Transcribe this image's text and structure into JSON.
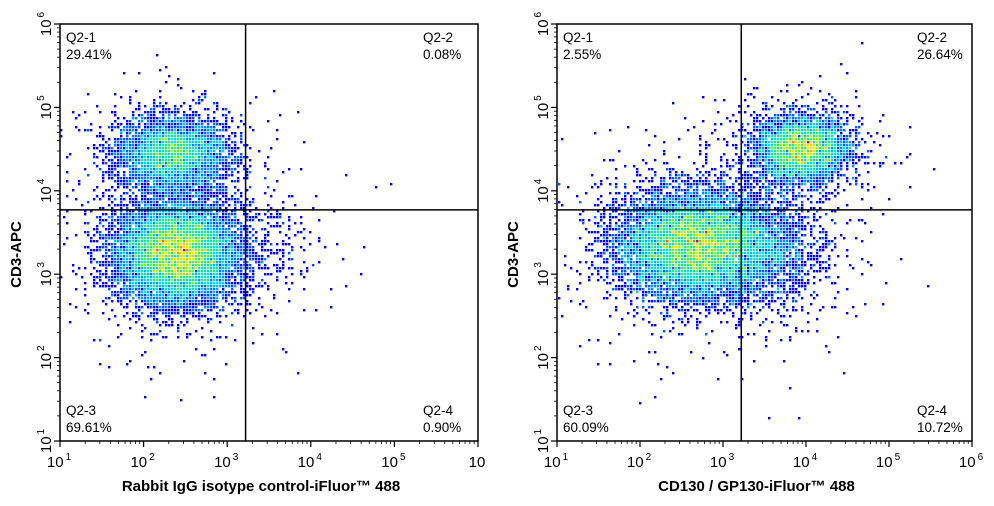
{
  "chart_data": [
    {
      "type": "scatter",
      "subtype": "flow-cytometry-density-plot",
      "xlabel": "Rabbit IgG isotype control-iFluor™ 488",
      "ylabel": "CD3-APC",
      "xscale": "log",
      "yscale": "log",
      "xlim": [
        10,
        1000000
      ],
      "ylim": [
        10,
        1000000
      ],
      "x_ticks": [
        {
          "base": "10",
          "exp": "1"
        },
        {
          "base": "10",
          "exp": "2"
        },
        {
          "base": "10",
          "exp": "3"
        },
        {
          "base": "10",
          "exp": "4"
        },
        {
          "base": "10",
          "exp": "5"
        },
        {
          "base": "10",
          "exp": ""
        }
      ],
      "y_ticks": [
        {
          "base": "10",
          "exp": "1"
        },
        {
          "base": "10",
          "exp": "2"
        },
        {
          "base": "10",
          "exp": "3"
        },
        {
          "base": "10",
          "exp": "4"
        },
        {
          "base": "10",
          "exp": "5"
        },
        {
          "base": "10",
          "exp": "6"
        }
      ],
      "gate": {
        "x": 1660,
        "y": 5900
      },
      "quadrants": [
        {
          "name": "Q2-1",
          "percent": "29.41%",
          "position": "top-left"
        },
        {
          "name": "Q2-2",
          "percent": "0.08%",
          "position": "top-right"
        },
        {
          "name": "Q2-3",
          "percent": "69.61%",
          "position": "bottom-left"
        },
        {
          "name": "Q2-4",
          "percent": "0.90%",
          "position": "bottom-right"
        }
      ],
      "populations": [
        {
          "log_x": 2.35,
          "log_y": 4.45,
          "sd_x": 0.33,
          "sd_y": 0.22,
          "fraction": 0.29
        },
        {
          "log_x": 2.4,
          "log_y": 3.25,
          "sd_x": 0.36,
          "sd_y": 0.3,
          "fraction": 0.7
        },
        {
          "log_x": 3.6,
          "log_y": 3.4,
          "sd_x": 0.3,
          "sd_y": 0.3,
          "fraction": 0.01
        }
      ]
    },
    {
      "type": "scatter",
      "subtype": "flow-cytometry-density-plot",
      "xlabel": "CD130 / GP130-iFluor™ 488",
      "ylabel": "CD3-APC",
      "xscale": "log",
      "yscale": "log",
      "xlim": [
        10,
        1000000
      ],
      "ylim": [
        10,
        1000000
      ],
      "x_ticks": [
        {
          "base": "10",
          "exp": "1"
        },
        {
          "base": "10",
          "exp": "2"
        },
        {
          "base": "10",
          "exp": "3"
        },
        {
          "base": "10",
          "exp": "4"
        },
        {
          "base": "10",
          "exp": "5"
        },
        {
          "base": "10",
          "exp": "6"
        }
      ],
      "y_ticks": [
        {
          "base": "10",
          "exp": "1"
        },
        {
          "base": "10",
          "exp": "2"
        },
        {
          "base": "10",
          "exp": "3"
        },
        {
          "base": "10",
          "exp": "4"
        },
        {
          "base": "10",
          "exp": "5"
        },
        {
          "base": "10",
          "exp": "6"
        }
      ],
      "gate": {
        "x": 1660,
        "y": 5900
      },
      "quadrants": [
        {
          "name": "Q2-1",
          "percent": "2.55%",
          "position": "top-left"
        },
        {
          "name": "Q2-2",
          "percent": "26.64%",
          "position": "top-right"
        },
        {
          "name": "Q2-3",
          "percent": "60.09%",
          "position": "bottom-left"
        },
        {
          "name": "Q2-4",
          "percent": "10.72%",
          "position": "bottom-right"
        }
      ],
      "populations": [
        {
          "log_x": 3.95,
          "log_y": 4.5,
          "sd_x": 0.28,
          "sd_y": 0.2,
          "fraction": 0.27
        },
        {
          "log_x": 2.65,
          "log_y": 3.35,
          "sd_x": 0.45,
          "sd_y": 0.32,
          "fraction": 0.62
        },
        {
          "log_x": 3.5,
          "log_y": 3.3,
          "sd_x": 0.35,
          "sd_y": 0.35,
          "fraction": 0.11
        }
      ]
    }
  ],
  "colors": {
    "low": "#0000ff",
    "high": "#ff0000",
    "axis": "#000000"
  }
}
